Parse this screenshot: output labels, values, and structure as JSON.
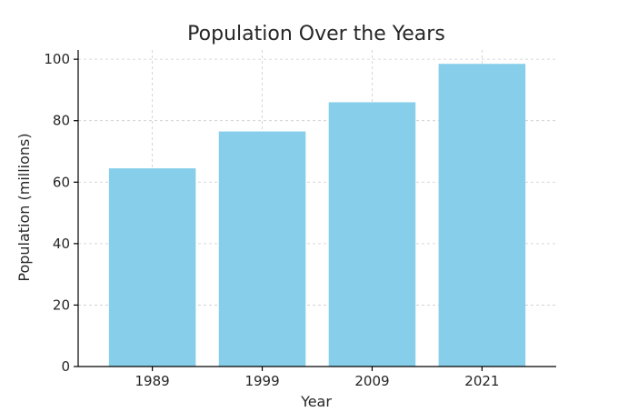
{
  "chart_data": {
    "type": "bar",
    "title": "Population Over the Years",
    "xlabel": "Year",
    "ylabel": "Population (millions)",
    "categories": [
      "1989",
      "1999",
      "2009",
      "2021"
    ],
    "values": [
      64.5,
      76.5,
      86,
      98.5
    ],
    "ylim": [
      0,
      103
    ],
    "yticks": [
      0,
      20,
      40,
      60,
      80,
      100
    ],
    "grid": true,
    "bar_color": "#87ceeb"
  }
}
